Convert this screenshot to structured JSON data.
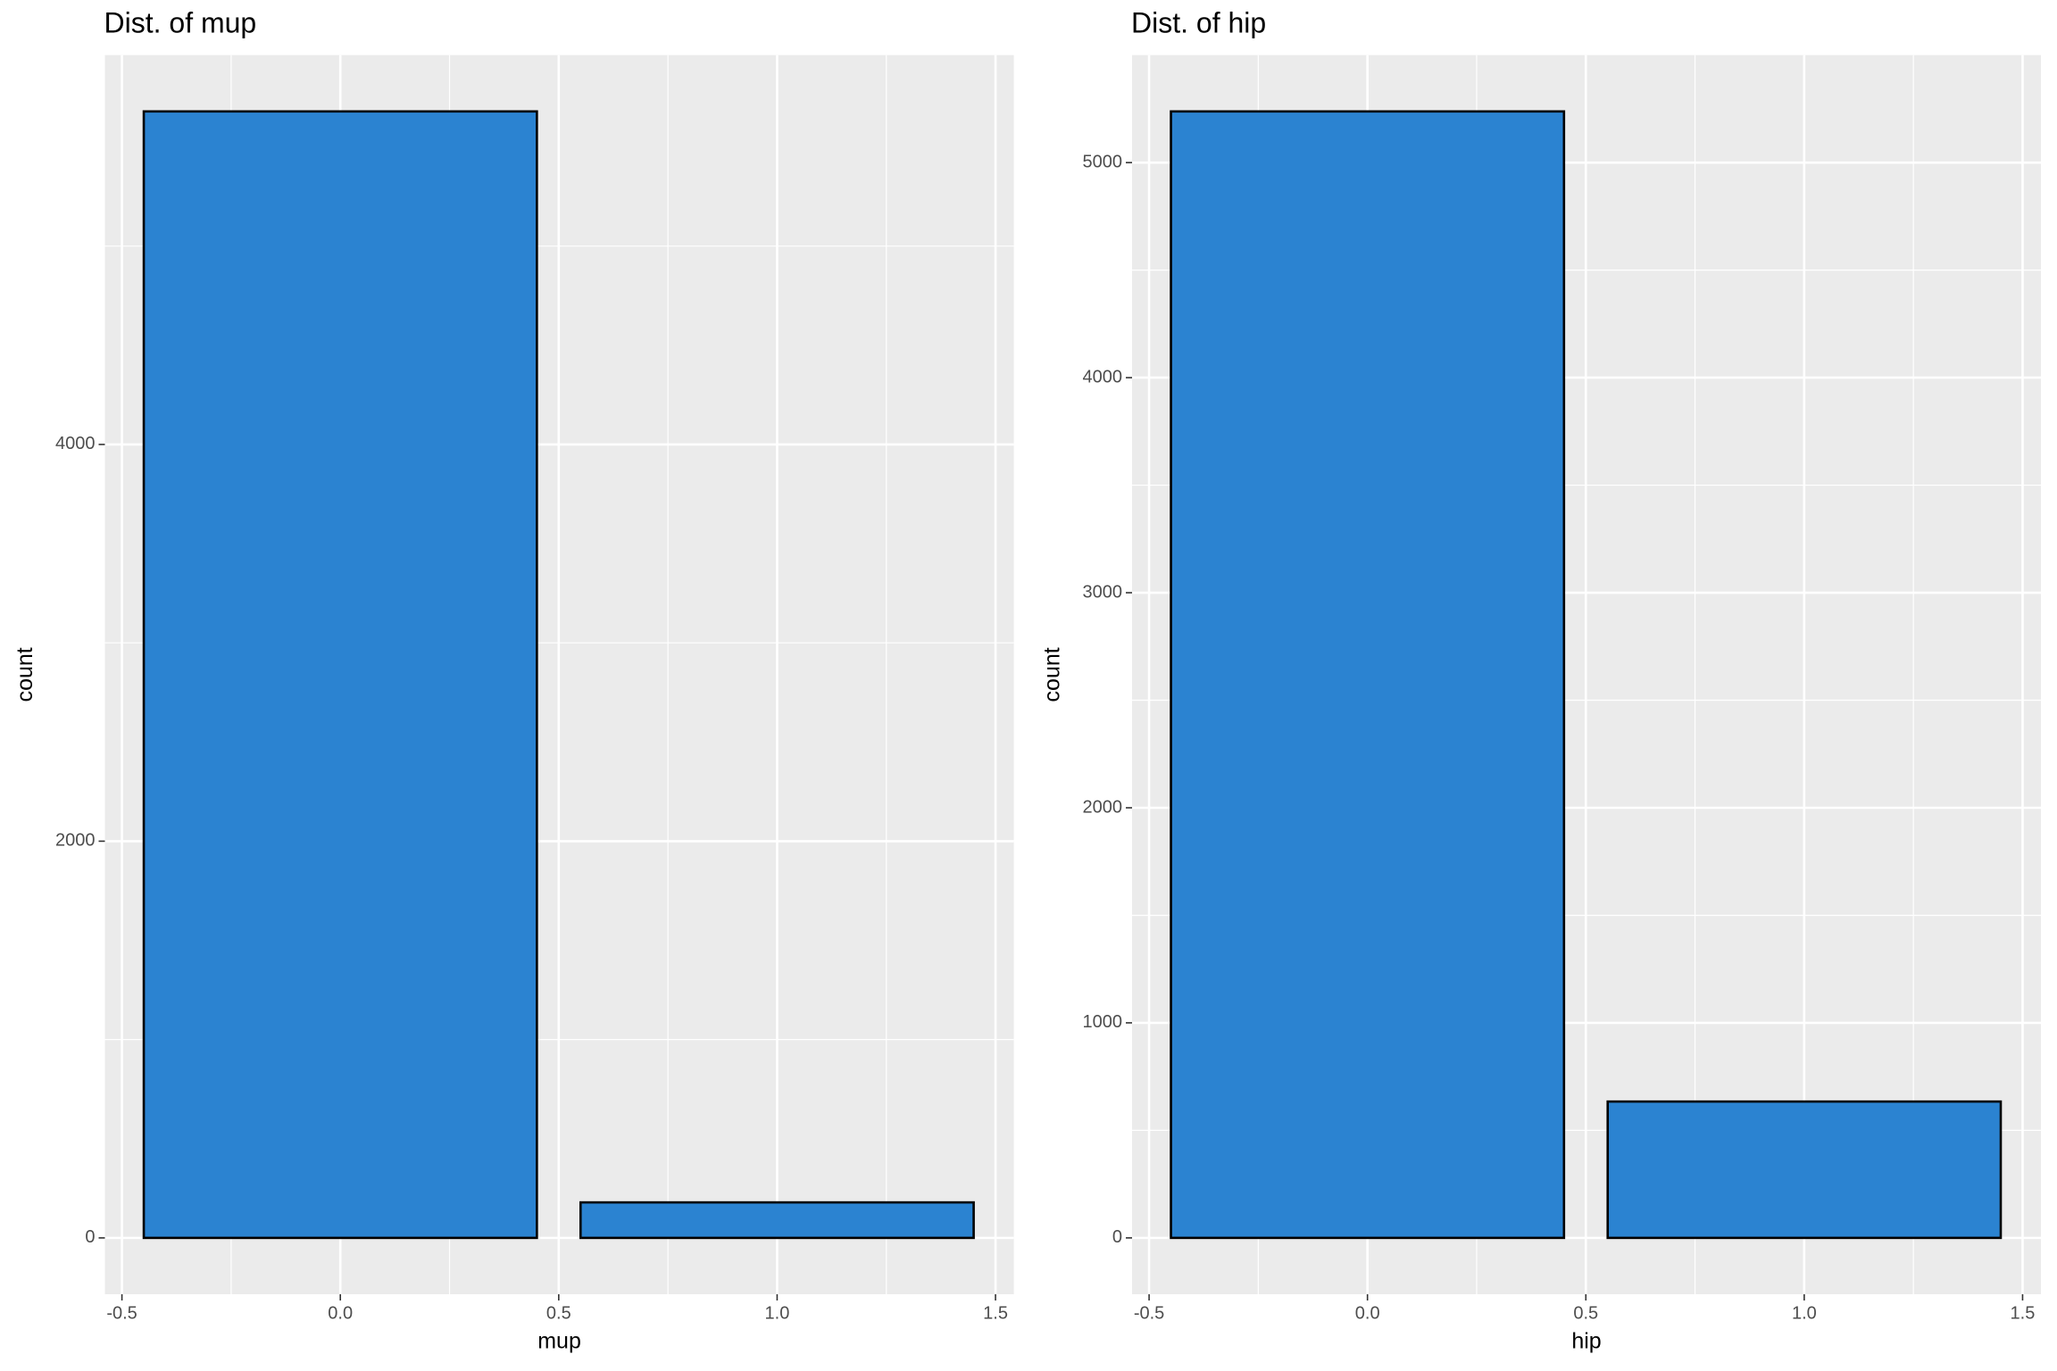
{
  "chart_data": [
    {
      "type": "bar",
      "title": "Dist. of mup",
      "x_label": "mup",
      "y_label": "count",
      "x": [
        0,
        1
      ],
      "values": [
        5679,
        179
      ],
      "color": "#2b83d1",
      "xlim": [
        -0.539,
        1.542
      ],
      "xticks": [
        -0.5,
        {
          "value": 0,
          "label": "0.0"
        },
        0.5,
        {
          "value": 1,
          "label": "1.0"
        },
        1.5
      ],
      "ylim": [
        -284,
        5963
      ],
      "yticks": [
        0,
        2000,
        4000
      ],
      "grid": true
    },
    {
      "type": "bar",
      "title": "Dist. of hip",
      "x_label": "hip",
      "y_label": "count",
      "x": [
        0,
        1
      ],
      "values": [
        5238,
        634
      ],
      "color": "#2b83d1",
      "xlim": [
        -0.539,
        1.542
      ],
      "xticks": [
        -0.5,
        {
          "value": 0,
          "label": "0.0"
        },
        0.5,
        {
          "value": 1,
          "label": "1.0"
        },
        1.5
      ],
      "ylim": [
        -262,
        5500
      ],
      "yticks": [
        0,
        1000,
        2000,
        3000,
        4000,
        5000
      ],
      "grid": true
    }
  ]
}
